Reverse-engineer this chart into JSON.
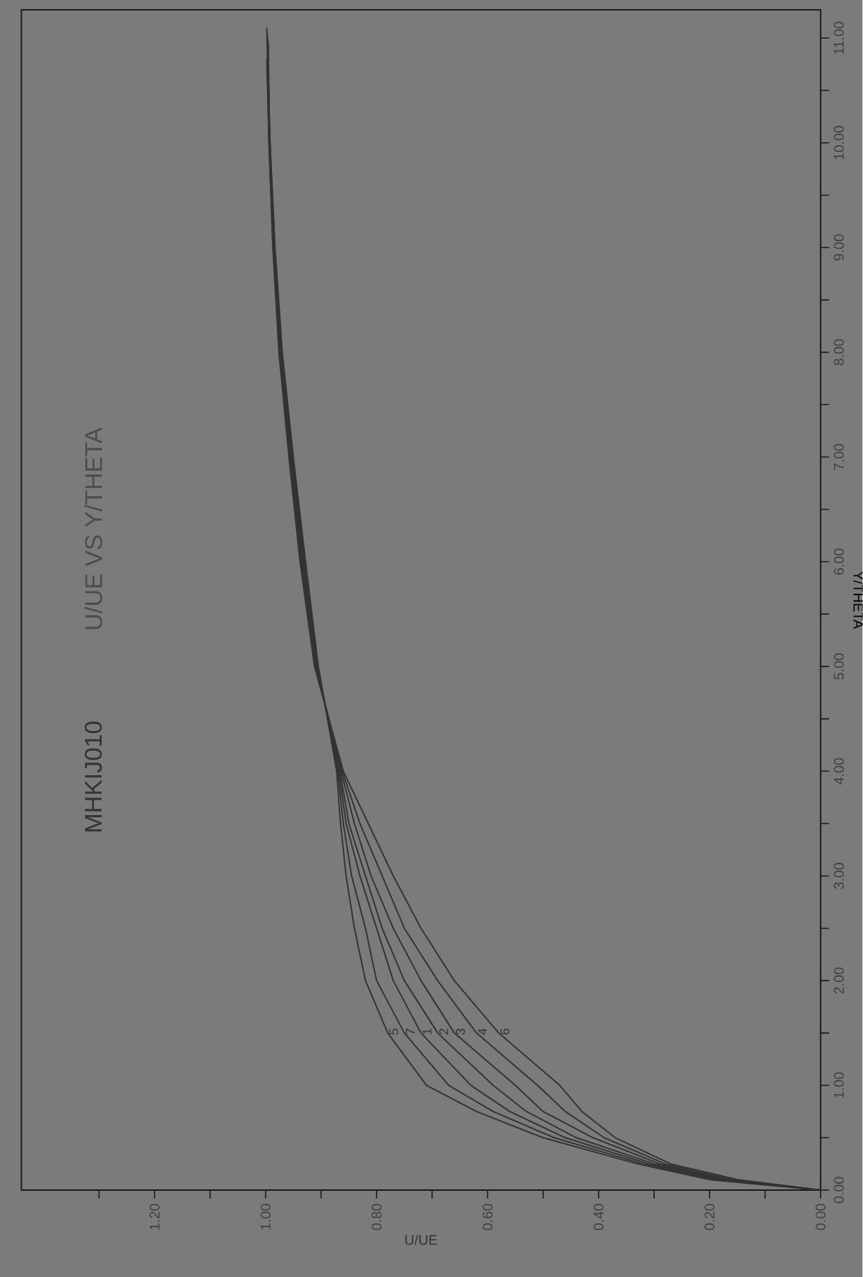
{
  "chart_data": {
    "type": "line",
    "title": "MHKIJ010",
    "subtitle": "U/UE VS Y/THETA",
    "xlabel": "U/UE",
    "ylabel": "Y/THETA",
    "series": [
      {
        "name": "5",
        "color": "#333333",
        "x": [
          0,
          0.2,
          0.33,
          0.5,
          0.62,
          0.71,
          0.78,
          0.82,
          0.84,
          0.855,
          0.865,
          0.872,
          0.905,
          0.928,
          0.95,
          0.97,
          0.983,
          0.992,
          0.998
        ],
        "values": [
          0,
          0.1,
          0.25,
          0.5,
          0.75,
          1,
          1.5,
          2,
          2.5,
          3,
          3.5,
          4,
          5,
          6,
          7,
          8,
          9,
          10,
          11.1
        ]
      },
      {
        "name": "7",
        "color": "#333333",
        "x": [
          0,
          0.19,
          0.32,
          0.48,
          0.59,
          0.67,
          0.75,
          0.8,
          0.82,
          0.845,
          0.86,
          0.87,
          0.906,
          0.93,
          0.951,
          0.971,
          0.984,
          0.992,
          0.997
        ],
        "values": [
          0,
          0.1,
          0.25,
          0.5,
          0.75,
          1,
          1.5,
          2,
          2.5,
          3,
          3.5,
          4,
          5,
          6,
          7,
          8,
          9,
          10,
          11.05
        ]
      },
      {
        "name": "1",
        "color": "#333333",
        "x": [
          0,
          0.18,
          0.31,
          0.46,
          0.56,
          0.63,
          0.72,
          0.77,
          0.8,
          0.83,
          0.855,
          0.868,
          0.907,
          0.932,
          0.952,
          0.972,
          0.984,
          0.993,
          0.996
        ],
        "values": [
          0,
          0.1,
          0.25,
          0.5,
          0.75,
          1,
          1.5,
          2,
          2.5,
          3,
          3.5,
          4,
          5,
          6,
          7,
          8,
          9,
          10,
          11
        ]
      },
      {
        "name": "2",
        "color": "#333333",
        "x": [
          0,
          0.175,
          0.3,
          0.44,
          0.53,
          0.59,
          0.69,
          0.75,
          0.79,
          0.82,
          0.85,
          0.866,
          0.908,
          0.933,
          0.954,
          0.973,
          0.985,
          0.993,
          0.995
        ],
        "values": [
          0,
          0.1,
          0.25,
          0.5,
          0.75,
          1,
          1.5,
          2,
          2.5,
          3,
          3.5,
          4,
          5,
          6,
          7,
          8,
          9,
          10,
          10.95
        ]
      },
      {
        "name": "3",
        "color": "#333333",
        "x": [
          0,
          0.17,
          0.29,
          0.41,
          0.5,
          0.55,
          0.66,
          0.72,
          0.77,
          0.81,
          0.84,
          0.864,
          0.909,
          0.934,
          0.955,
          0.974,
          0.985,
          0.993,
          0.996
        ],
        "values": [
          0,
          0.1,
          0.25,
          0.5,
          0.75,
          1,
          1.5,
          2,
          2.5,
          3,
          3.5,
          4,
          5,
          6,
          7,
          8,
          9,
          10,
          10.9
        ]
      },
      {
        "name": "4",
        "color": "#333333",
        "x": [
          0,
          0.16,
          0.28,
          0.39,
          0.46,
          0.51,
          0.62,
          0.69,
          0.75,
          0.79,
          0.83,
          0.862,
          0.91,
          0.936,
          0.956,
          0.975,
          0.986,
          0.994,
          0.997
        ],
        "values": [
          0,
          0.1,
          0.25,
          0.5,
          0.75,
          1,
          1.5,
          2,
          2.5,
          3,
          3.5,
          4,
          5,
          6,
          7,
          8,
          9,
          10,
          10.85
        ]
      },
      {
        "name": "6",
        "color": "#333333",
        "x": [
          0,
          0.15,
          0.27,
          0.37,
          0.43,
          0.47,
          0.58,
          0.66,
          0.72,
          0.77,
          0.815,
          0.86,
          0.912,
          0.938,
          0.958,
          0.976,
          0.987,
          0.994,
          0.998
        ],
        "values": [
          0,
          0.1,
          0.25,
          0.5,
          0.75,
          1,
          1.5,
          2,
          2.5,
          3,
          3.5,
          4,
          5,
          6,
          7,
          8,
          9,
          10,
          10.8
        ]
      }
    ],
    "xlim": [
      1.44,
      0
    ],
    "ylim": [
      0,
      11.27
    ],
    "yticks": [
      {
        "value": 0,
        "label": "0.00"
      },
      {
        "value": 0.5,
        "label": null
      },
      {
        "value": 1,
        "label": "1.00"
      },
      {
        "value": 1.5,
        "label": null
      },
      {
        "value": 2,
        "label": "2.00"
      },
      {
        "value": 2.5,
        "label": null
      },
      {
        "value": 3,
        "label": "3.00"
      },
      {
        "value": 3.5,
        "label": null
      },
      {
        "value": 4,
        "label": "4.00"
      },
      {
        "value": 4.5,
        "label": null
      },
      {
        "value": 5,
        "label": "5.00"
      },
      {
        "value": 5.5,
        "label": null
      },
      {
        "value": 6,
        "label": "6.00"
      },
      {
        "value": 6.5,
        "label": null
      },
      {
        "value": 7,
        "label": "7.00"
      },
      {
        "value": 7.5,
        "label": null
      },
      {
        "value": 8,
        "label": "8.00"
      },
      {
        "value": 8.5,
        "label": null
      },
      {
        "value": 9,
        "label": "9.00"
      },
      {
        "value": 9.5,
        "label": null
      },
      {
        "value": 10,
        "label": "10.00"
      },
      {
        "value": 10.5,
        "label": null
      },
      {
        "value": 11,
        "label": "11.00"
      }
    ],
    "xticks": [
      {
        "value": 0,
        "label": "0.00"
      },
      {
        "value": 0.1,
        "label": null
      },
      {
        "value": 0.2,
        "label": "0.20"
      },
      {
        "value": 0.3,
        "label": null
      },
      {
        "value": 0.4,
        "label": "0.40"
      },
      {
        "value": 0.5,
        "label": null
      },
      {
        "value": 0.6,
        "label": "0.60"
      },
      {
        "value": 0.7,
        "label": null
      },
      {
        "value": 0.8,
        "label": "0.80"
      },
      {
        "value": 0.9,
        "label": null
      },
      {
        "value": 1.0,
        "label": "1.00"
      },
      {
        "value": 1.1,
        "label": null
      },
      {
        "value": 1.2,
        "label": "1.20"
      },
      {
        "value": 1.3,
        "label": null
      }
    ]
  }
}
